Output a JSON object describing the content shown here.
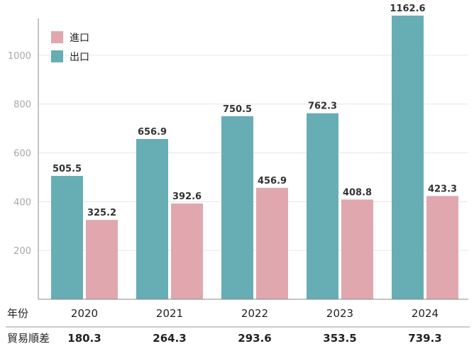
{
  "chart_data": {
    "type": "bar",
    "categories": [
      "2020",
      "2021",
      "2022",
      "2023",
      "2024"
    ],
    "series": [
      {
        "name": "出口",
        "values": [
          505.5,
          656.9,
          750.5,
          762.3,
          1162.6
        ]
      },
      {
        "name": "進口",
        "values": [
          325.2,
          392.6,
          456.9,
          408.8,
          423.3
        ]
      }
    ],
    "yticks": [
      200,
      400,
      600,
      800,
      1000
    ],
    "ylim": [
      0,
      1180
    ],
    "grid": true,
    "legend_position": "top-left",
    "legend_order": [
      "進口",
      "出口"
    ],
    "row_labels": {
      "year": "年份",
      "balance": "貿易順差"
    },
    "trade_balance": [
      "180.3",
      "264.3",
      "293.6",
      "353.5",
      "739.3"
    ],
    "highlight_balance_index": 4,
    "colors": {
      "export": "#67adb4",
      "import": "#e0a7ae",
      "highlight": "#8b3a3a",
      "grid": "#e6e6e6",
      "axis": "#888888"
    }
  }
}
